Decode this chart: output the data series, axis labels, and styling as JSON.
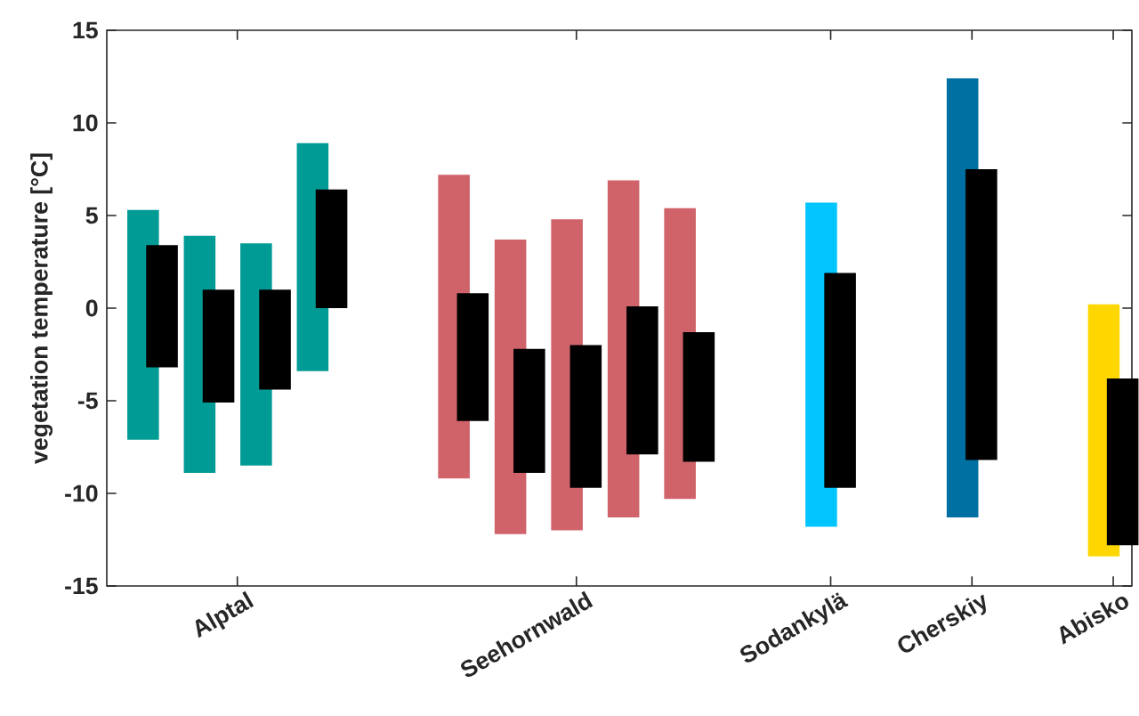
{
  "chart_data": {
    "type": "bar",
    "ylabel": "vegetation temperature [°C]",
    "categories": [
      "Alptal",
      "Seehornwald",
      "Sodankylä",
      "Cherskiy",
      "Abisko"
    ],
    "ylim": [
      -15,
      15
    ],
    "yticks": [
      -15,
      -10,
      -5,
      0,
      5,
      10,
      15
    ],
    "grid": false,
    "series": [
      {
        "colors": [
          "#009b95",
          "#d0636a",
          "#00c5ff",
          "#0070a3",
          "#ffd700"
        ],
        "base": [
          -7.1,
          -9.2,
          -11.8,
          -11.3,
          -13.4
        ],
        "values": [
          12.4,
          16.4,
          17.5,
          23.7,
          13.6
        ]
      },
      {
        "color": "#000000",
        "base": [
          -3.2,
          -6.1,
          -9.7,
          -8.2,
          -12.8
        ],
        "values": [
          6.6,
          6.9,
          11.6,
          15.7,
          9.0
        ]
      },
      {
        "colors": [
          "#009b95",
          "#d0636a",
          null,
          null,
          null
        ],
        "base": [
          -8.9,
          -12.2,
          null,
          null,
          null
        ],
        "values": [
          12.8,
          15.9,
          null,
          null,
          null
        ]
      },
      {
        "color": "#000000",
        "base": [
          -5.1,
          -8.9,
          null,
          null,
          null
        ],
        "values": [
          6.1,
          6.7,
          null,
          null,
          null
        ]
      },
      {
        "colors": [
          "#009b95",
          "#d0636a",
          null,
          null,
          null
        ],
        "base": [
          -8.5,
          -12.0,
          null,
          null,
          null
        ],
        "values": [
          12.0,
          16.8,
          null,
          null,
          null
        ]
      },
      {
        "color": "#000000",
        "base": [
          -4.4,
          -9.7,
          null,
          null,
          null
        ],
        "values": [
          5.4,
          7.7,
          null,
          null,
          null
        ]
      },
      {
        "colors": [
          "#009b95",
          "#d0636a",
          null,
          null,
          null
        ],
        "base": [
          -3.4,
          -11.3,
          null,
          null,
          null
        ],
        "values": [
          12.3,
          18.2,
          null,
          null,
          null
        ]
      },
      {
        "color": "#000000",
        "base": [
          0.0,
          -7.9,
          null,
          null,
          null
        ],
        "values": [
          6.4,
          8.0,
          null,
          null,
          null
        ]
      },
      {
        "colors": [
          null,
          "#d0636a",
          null,
          null,
          null
        ],
        "base": [
          null,
          -10.3,
          null,
          null,
          null
        ],
        "values": [
          null,
          15.7,
          null,
          null,
          null
        ]
      },
      {
        "color": "#000000",
        "base": [
          null,
          -8.3,
          null,
          null,
          null
        ],
        "values": [
          null,
          7.0,
          null,
          null,
          null
        ]
      }
    ]
  }
}
